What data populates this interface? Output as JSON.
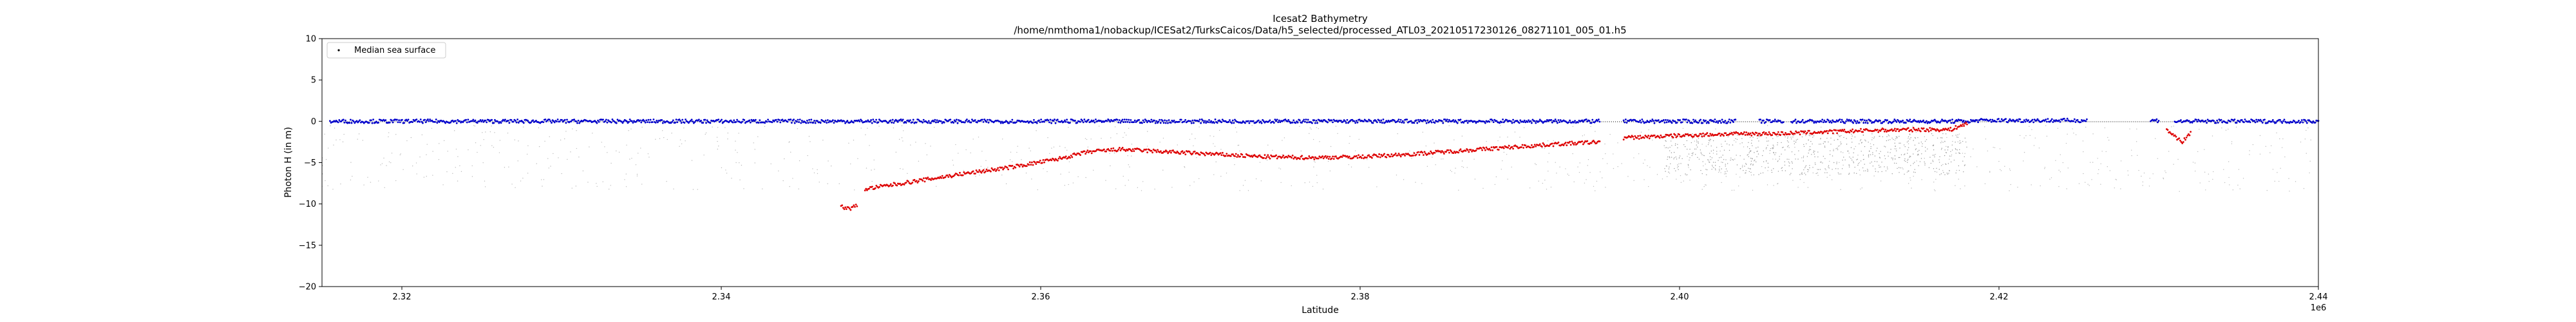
{
  "chart_data": {
    "type": "scatter",
    "title": "Icesat2 Bathymetry",
    "subtitle": "/home/nmthoma1/nobackup/ICESat2/TurksCaicos/Data/h5_selected/processed_ATL03_20210517230126_08271101_005_01.h5",
    "xlabel": "Latitude",
    "ylabel": "Photon H (in m)",
    "x_offset_label": "1e6",
    "xlim": [
      2.315,
      2.44
    ],
    "ylim": [
      -20,
      10
    ],
    "x_ticks": [
      2.32,
      2.34,
      2.36,
      2.38,
      2.4,
      2.42,
      2.44
    ],
    "x_tick_labels": [
      "2.32",
      "2.34",
      "2.36",
      "2.38",
      "2.40",
      "2.42",
      "2.44"
    ],
    "y_ticks": [
      10,
      5,
      0,
      -5,
      -10,
      -15,
      -20
    ],
    "y_tick_labels": [
      "10",
      "5",
      "0",
      "−5",
      "−10",
      "−15",
      "−20"
    ],
    "grid": false,
    "legend": {
      "position": "top-left",
      "entries": [
        {
          "label": "Median sea surface",
          "color": "#000000"
        }
      ]
    },
    "series": [
      {
        "name": "Median sea surface",
        "color": "#000000",
        "x": [
          2.3155,
          2.395,
          2.3965,
          2.418,
          2.431,
          2.44
        ],
        "y": [
          -0.05,
          -0.05,
          -0.05,
          -0.05,
          -0.05,
          -0.05
        ]
      },
      {
        "role": "sea surface photons",
        "color": "#0000cc",
        "segments": [
          {
            "x": [
              2.3155,
              2.395
            ],
            "y": [
              0.0,
              0.0
            ]
          },
          {
            "x": [
              2.3965,
              2.4035
            ],
            "y": [
              0.0,
              0.0
            ]
          },
          {
            "x": [
              2.405,
              2.4065
            ],
            "y": [
              0.0,
              0.0
            ]
          },
          {
            "x": [
              2.407,
              2.4185
            ],
            "y": [
              0.0,
              0.0
            ]
          },
          {
            "x": [
              2.4185,
              2.4255
            ],
            "y": [
              0.1,
              0.1
            ]
          },
          {
            "x": [
              2.4295,
              2.43
            ],
            "y": [
              0.1,
              0.1
            ]
          },
          {
            "x": [
              2.431,
              2.44
            ],
            "y": [
              0.0,
              0.0
            ]
          }
        ]
      },
      {
        "role": "bathymetry photons",
        "color": "#dd0000",
        "segments": [
          {
            "x": [
              2.3475,
              2.348,
              2.3485
            ],
            "y": [
              -10.3,
              -10.6,
              -10.2
            ]
          },
          {
            "x": [
              2.349,
              2.352,
              2.355,
              2.358,
              2.361,
              2.363,
              2.365,
              2.368,
              2.371,
              2.374,
              2.377,
              2.38,
              2.383,
              2.386,
              2.389,
              2.392,
              2.395
            ],
            "y": [
              -8.2,
              -7.3,
              -6.4,
              -5.6,
              -4.6,
              -3.7,
              -3.4,
              -3.7,
              -4.0,
              -4.3,
              -4.4,
              -4.3,
              -4.0,
              -3.6,
              -3.2,
              -2.8,
              -2.5
            ]
          },
          {
            "x": [
              2.3965,
              2.399,
              2.402,
              2.404,
              2.406,
              2.409,
              2.412,
              2.415,
              2.417,
              2.4175,
              2.418
            ],
            "y": [
              -2.0,
              -1.8,
              -1.6,
              -1.5,
              -1.5,
              -1.3,
              -1.1,
              -1.0,
              -1.0,
              -0.6,
              -0.3
            ]
          },
          {
            "x": [
              2.4305,
              2.431,
              2.4315,
              2.432
            ],
            "y": [
              -1.0,
              -1.8,
              -2.5,
              -1.4
            ]
          }
        ]
      }
    ]
  }
}
